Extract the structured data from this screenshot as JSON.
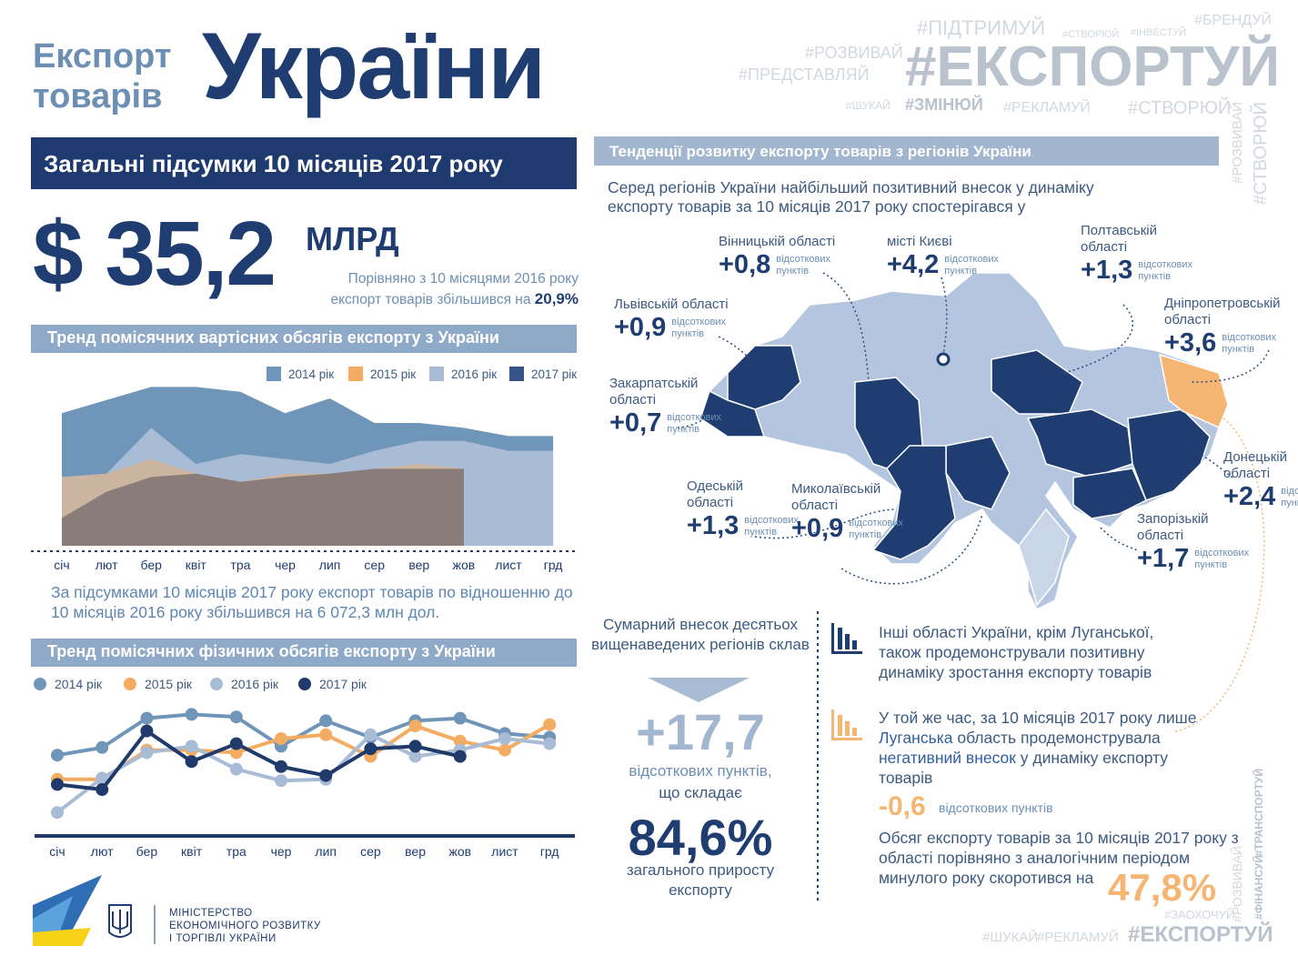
{
  "header": {
    "title_small": [
      "Експорт",
      "товарів"
    ],
    "title_big": "України",
    "hashtags": [
      "#ПІДТРИМУЙ",
      "#СТВОРЮЙ",
      "#ІНВЕСТУЙ",
      "#БРЕНДУЙ",
      "#РОЗВИВАЙ",
      "#ЕКСПОРТУЙ",
      "#ПРЕДСТАВЛЯЙ",
      "#ШУКАЙ",
      "#ЗМІНЮЙ",
      "#РЕКЛАМУЙ",
      "#СТВОРЮЙ",
      "#РОЗВИВАЙ",
      "#СТВОРЮЙ"
    ]
  },
  "summary": {
    "heading": "Загальні підсумки 10 місяців 2017 року",
    "amount": "$ 35,2",
    "unit": "МЛРД",
    "comparison": "Порівняно з 10 місяцями 2016 року експорт товарів збільшився на",
    "growth": "20,9%"
  },
  "chart_data": [
    {
      "type": "area",
      "title": "Тренд помісячних вартісних обсягів експорту з України",
      "categories": [
        "січ",
        "лют",
        "бер",
        "квіт",
        "тра",
        "чер",
        "лип",
        "сер",
        "вер",
        "жов",
        "лист",
        "грд"
      ],
      "ylim": [
        0,
        100
      ],
      "series": [
        {
          "name": "2014 рік",
          "color": "#6f95b8",
          "values": [
            81,
            89,
            97,
            97,
            94,
            81,
            90,
            75,
            75,
            72,
            67,
            67
          ]
        },
        {
          "name": "2015 рік",
          "color": "#f4ac62",
          "values": [
            42,
            44,
            53,
            44,
            39,
            44,
            44,
            47,
            50,
            47,
            null,
            null
          ]
        },
        {
          "name": "2016 рік",
          "color": "#a9bcd6",
          "values": [
            42,
            44,
            72,
            50,
            56,
            53,
            50,
            58,
            64,
            64,
            58,
            58
          ]
        },
        {
          "name": "2017 рік",
          "color": "#34548a",
          "values": [
            17,
            33,
            42,
            44,
            39,
            42,
            44,
            47,
            47,
            47,
            null,
            null
          ]
        }
      ]
    },
    {
      "type": "line",
      "title": "Тренд помісячних фізичних обсягів експорту з України",
      "categories": [
        "січ",
        "лют",
        "бер",
        "квіт",
        "тра",
        "чер",
        "лип",
        "сер",
        "вер",
        "жов",
        "лист",
        "грд"
      ],
      "ylim": [
        0,
        100
      ],
      "series": [
        {
          "name": "2014 рік",
          "color": "#6f95b8",
          "values": [
            57,
            63,
            86,
            89,
            87,
            64,
            84,
            71,
            84,
            86,
            74,
            71
          ]
        },
        {
          "name": "2015 рік",
          "color": "#f4ac62",
          "values": [
            38,
            38,
            61,
            61,
            59,
            70,
            73,
            56,
            80,
            68,
            61,
            81
          ]
        },
        {
          "name": "2016 рік",
          "color": "#a9bcd6",
          "values": [
            12,
            39,
            59,
            64,
            46,
            37,
            38,
            73,
            56,
            61,
            70,
            66
          ]
        },
        {
          "name": "2017 рік",
          "color": "#1f3a6b",
          "values": [
            34,
            30,
            76,
            52,
            66,
            48,
            41,
            62,
            64,
            56,
            null,
            null
          ]
        }
      ]
    }
  ],
  "value_note": "За підсумками 10 місяців 2017 року експорт товарів по відношенню до 10 місяців 2016 року збільшився на 6 072,3 млн дол.",
  "regions": {
    "heading": "Тенденції розвитку експорту товарів з регіонів України",
    "intro": "Серед регіонів України найбільший позитивний внесок у динаміку експорту товарів за 10 місяців 2017 року спостерігався у",
    "items": [
      {
        "name": "Вінницькій області",
        "value": "+0,8",
        "unit": "відсоткових пунктів"
      },
      {
        "name": "місті Києві",
        "value": "+4,2",
        "unit": "відсоткових пунктів"
      },
      {
        "name": "Полтавській області",
        "value": "+1,3",
        "unit": "відсоткових пунктів"
      },
      {
        "name": "Львівській області",
        "value": "+0,9",
        "unit": "відсоткових пунктів"
      },
      {
        "name": "Дніпропетровській області",
        "value": "+3,6",
        "unit": "відсоткових пунктів"
      },
      {
        "name": "Закарпатській області",
        "value": "+0,7",
        "unit": "відсоткових пунктів"
      },
      {
        "name": "Донецькій області",
        "value": "+2,4",
        "unit": "відсоткових пунктів"
      },
      {
        "name": "Одеській області",
        "value": "+1,3",
        "unit": "відсоткових пунктів"
      },
      {
        "name": "Миколаївській області",
        "value": "+0,9",
        "unit": "відсоткових пунктів"
      },
      {
        "name": "Запорізькій області",
        "value": "+1,7",
        "unit": "відсоткових пунктів"
      }
    ]
  },
  "total": {
    "intro": "Сумарний внесок десятьох вищенаведених регіонів склав",
    "value": "+17,7",
    "unit": "відсоткових пунктів,",
    "connector": "що складає",
    "share": "84,6%",
    "share_note": "загального приросту експорту"
  },
  "others": {
    "text": "Інші області України, крім Луганської, також продемонстрували позитивну динаміку зростання експорту товарів"
  },
  "luhansk": {
    "parts": [
      "У той же час, за 10 місяців 2017 року лише ",
      "Луганська",
      " область продемонструвала ",
      "негативний внесок",
      " у динаміку експорту товарів"
    ],
    "value": "-0,6",
    "unit": "відсоткових пунктів",
    "decline_text": "Обсяг експорту товарів за 10 місяців 2017 року з області порівняно з аналогічним періодом минулого року скоротився на",
    "decline": "47,8%"
  },
  "footer": {
    "ministry": [
      "МІНІСТЕРСТВО",
      "ЕКОНОМІЧНОГО РОЗВИТКУ",
      "І ТОРГІВЛІ УКРАЇНИ"
    ],
    "hashtags": [
      "#ТРАНСПОРТУЙ",
      "#ФІНАНСУЙ",
      "#РОЗВИВАЙ",
      "#ЗАОХОЧУЙ",
      "#ШУКАЙ",
      "#РЕКЛАМУЙ",
      "#ЕКСПОРТУЙ"
    ]
  }
}
